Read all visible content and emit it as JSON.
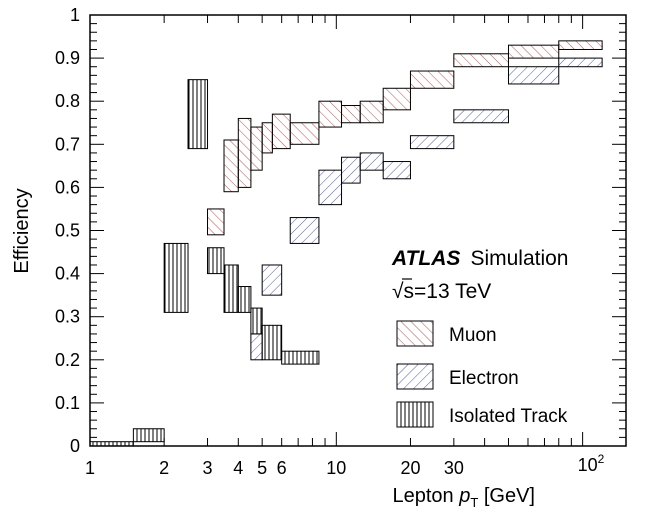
{
  "chart_data": {
    "type": "box",
    "xlabel": "Lepton p_T [GeV]",
    "xlabel_main": "Lepton ",
    "xlabel_p": "p",
    "xlabel_sub": "T",
    "xlabel_unit": " [GeV]",
    "ylabel": "Efficiency",
    "xscale": "log",
    "xlim": [
      1,
      150
    ],
    "ylim": [
      0,
      1
    ],
    "grid": false,
    "x_ticks": [
      {
        "v": 1,
        "label": "1"
      },
      {
        "v": 2,
        "label": "2"
      },
      {
        "v": 3,
        "label": "3"
      },
      {
        "v": 4,
        "label": "4"
      },
      {
        "v": 5,
        "label": "5"
      },
      {
        "v": 6,
        "label": "6"
      },
      {
        "v": 10,
        "label": "10"
      },
      {
        "v": 20,
        "label": "20"
      },
      {
        "v": 30,
        "label": "30"
      }
    ],
    "x_tick_100": {
      "v": 100,
      "base": "10",
      "exp": "2"
    },
    "y_ticks": [
      {
        "v": 0,
        "label": "0"
      },
      {
        "v": 0.1,
        "label": "0.1"
      },
      {
        "v": 0.2,
        "label": "0.2"
      },
      {
        "v": 0.3,
        "label": "0.3"
      },
      {
        "v": 0.4,
        "label": "0.4"
      },
      {
        "v": 0.5,
        "label": "0.5"
      },
      {
        "v": 0.6,
        "label": "0.6"
      },
      {
        "v": 0.7,
        "label": "0.7"
      },
      {
        "v": 0.8,
        "label": "0.8"
      },
      {
        "v": 0.9,
        "label": "0.9"
      },
      {
        "v": 1,
        "label": "1"
      }
    ],
    "annotation": {
      "atlas": "ATLAS",
      "simulation": "Simulation",
      "energy_sqrt": "√",
      "energy_rest": "s=13 TeV"
    },
    "legend_position": "bottom-right",
    "series": [
      {
        "name": "Muon",
        "style": "hatch-diagonal-up",
        "color": "#c0504d",
        "bins": [
          {
            "x0": 3.0,
            "x1": 3.5,
            "lo": 0.49,
            "hi": 0.55
          },
          {
            "x0": 3.5,
            "x1": 4.0,
            "lo": 0.59,
            "hi": 0.71
          },
          {
            "x0": 4.0,
            "x1": 4.5,
            "lo": 0.6,
            "hi": 0.76
          },
          {
            "x0": 4.5,
            "x1": 5.0,
            "lo": 0.64,
            "hi": 0.74
          },
          {
            "x0": 5.0,
            "x1": 5.5,
            "lo": 0.68,
            "hi": 0.75
          },
          {
            "x0": 5.5,
            "x1": 6.5,
            "lo": 0.69,
            "hi": 0.77
          },
          {
            "x0": 6.5,
            "x1": 8.5,
            "lo": 0.7,
            "hi": 0.75
          },
          {
            "x0": 8.5,
            "x1": 10.5,
            "lo": 0.74,
            "hi": 0.8
          },
          {
            "x0": 10.5,
            "x1": 12.5,
            "lo": 0.75,
            "hi": 0.79
          },
          {
            "x0": 12.5,
            "x1": 15.5,
            "lo": 0.75,
            "hi": 0.8
          },
          {
            "x0": 15.5,
            "x1": 20.0,
            "lo": 0.78,
            "hi": 0.83
          },
          {
            "x0": 20.0,
            "x1": 30.0,
            "lo": 0.83,
            "hi": 0.87
          },
          {
            "x0": 30.0,
            "x1": 50.0,
            "lo": 0.88,
            "hi": 0.91
          },
          {
            "x0": 50.0,
            "x1": 80.0,
            "lo": 0.9,
            "hi": 0.93
          },
          {
            "x0": 80.0,
            "x1": 120.0,
            "lo": 0.92,
            "hi": 0.94
          }
        ]
      },
      {
        "name": "Electron",
        "style": "hatch-diagonal-down",
        "color": "#4f5bbd",
        "bins": [
          {
            "x0": 4.5,
            "x1": 5.0,
            "lo": 0.2,
            "hi": 0.26
          },
          {
            "x0": 5.0,
            "x1": 6.0,
            "lo": 0.35,
            "hi": 0.42
          },
          {
            "x0": 6.5,
            "x1": 8.5,
            "lo": 0.47,
            "hi": 0.53
          },
          {
            "x0": 8.5,
            "x1": 10.5,
            "lo": 0.56,
            "hi": 0.64
          },
          {
            "x0": 10.5,
            "x1": 12.5,
            "lo": 0.61,
            "hi": 0.67
          },
          {
            "x0": 12.5,
            "x1": 15.5,
            "lo": 0.64,
            "hi": 0.68
          },
          {
            "x0": 15.5,
            "x1": 20.0,
            "lo": 0.62,
            "hi": 0.66
          },
          {
            "x0": 20.0,
            "x1": 30.0,
            "lo": 0.69,
            "hi": 0.72
          },
          {
            "x0": 30.0,
            "x1": 50.0,
            "lo": 0.75,
            "hi": 0.78
          },
          {
            "x0": 50.0,
            "x1": 80.0,
            "lo": 0.84,
            "hi": 0.88
          },
          {
            "x0": 80.0,
            "x1": 120.0,
            "lo": 0.88,
            "hi": 0.9
          }
        ]
      },
      {
        "name": "Isolated Track",
        "style": "hatch-vertical",
        "color": "#000000",
        "bins": [
          {
            "x0": 1.0,
            "x1": 1.5,
            "lo": 0.0,
            "hi": 0.01
          },
          {
            "x0": 1.5,
            "x1": 2.0,
            "lo": 0.01,
            "hi": 0.04
          },
          {
            "x0": 2.0,
            "x1": 2.5,
            "lo": 0.31,
            "hi": 0.47
          },
          {
            "x0": 2.5,
            "x1": 3.0,
            "lo": 0.69,
            "hi": 0.85
          },
          {
            "x0": 3.0,
            "x1": 3.5,
            "lo": 0.4,
            "hi": 0.46
          },
          {
            "x0": 3.5,
            "x1": 4.0,
            "lo": 0.31,
            "hi": 0.42
          },
          {
            "x0": 4.0,
            "x1": 4.5,
            "lo": 0.31,
            "hi": 0.37
          },
          {
            "x0": 4.5,
            "x1": 5.0,
            "lo": 0.26,
            "hi": 0.32
          },
          {
            "x0": 5.0,
            "x1": 6.0,
            "lo": 0.2,
            "hi": 0.28
          },
          {
            "x0": 6.0,
            "x1": 8.5,
            "lo": 0.19,
            "hi": 0.22
          }
        ]
      }
    ]
  }
}
